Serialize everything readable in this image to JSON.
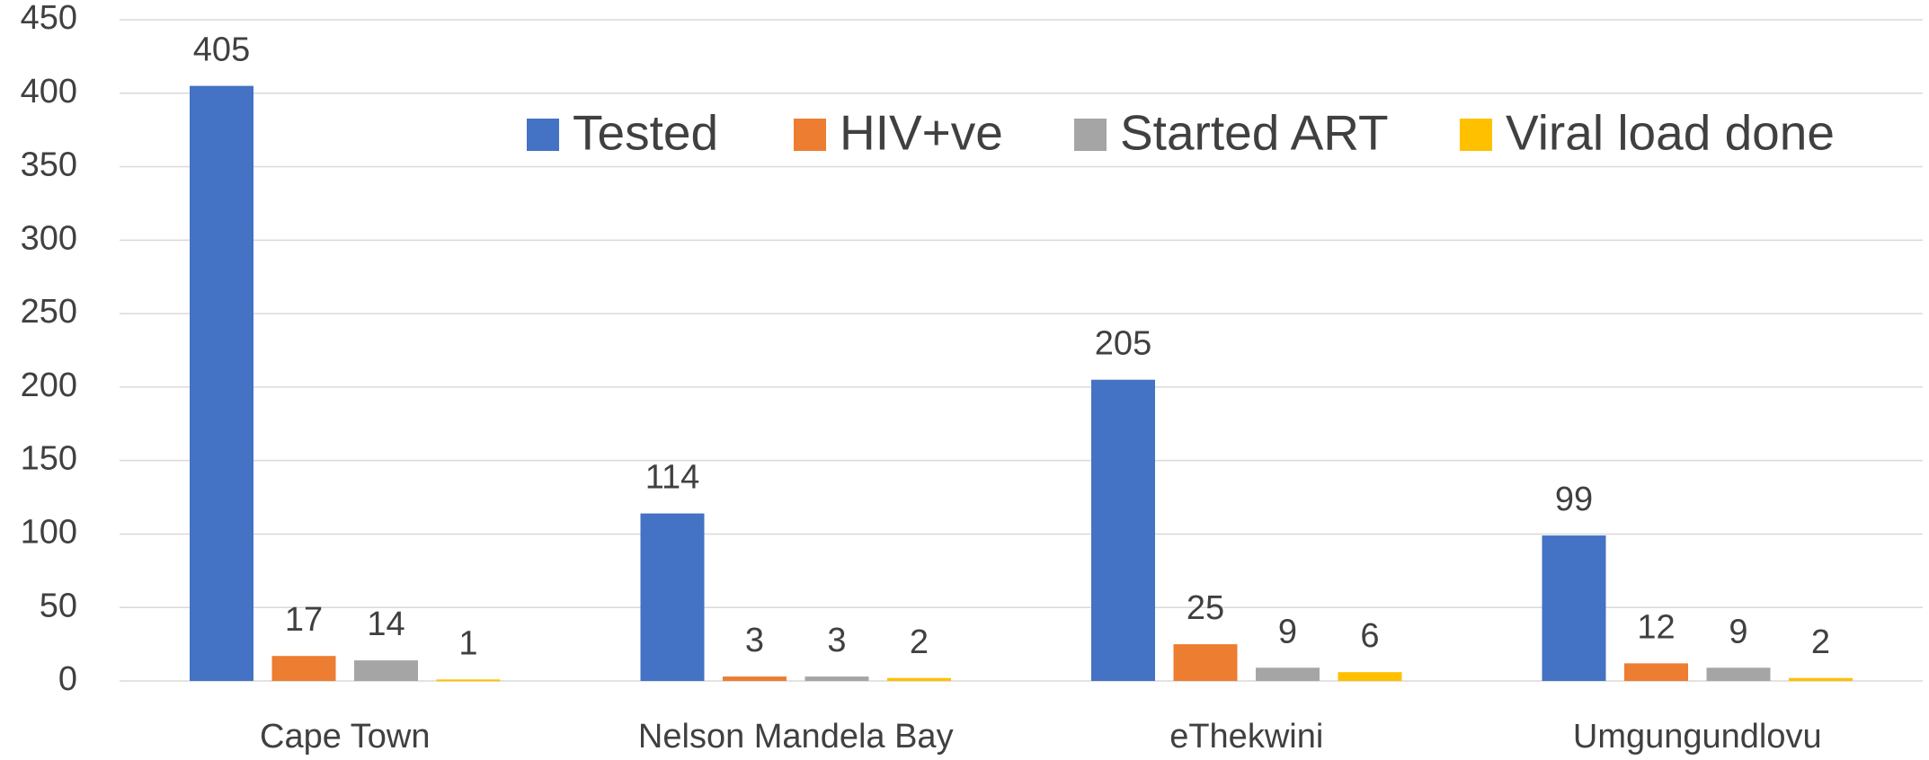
{
  "chart_data": {
    "type": "bar",
    "categories": [
      "Cape Town",
      "Nelson Mandela Bay",
      "eThekwini",
      "Umgungundlovu"
    ],
    "series": [
      {
        "name": "Tested",
        "color": "#4472c4",
        "values": [
          405,
          114,
          205,
          99
        ]
      },
      {
        "name": "HIV+ve",
        "color": "#ed7d31",
        "values": [
          17,
          3,
          25,
          12
        ]
      },
      {
        "name": "Started ART",
        "color": "#a5a5a5",
        "values": [
          14,
          3,
          9,
          9
        ]
      },
      {
        "name": "Viral load done",
        "color": "#ffc000",
        "values": [
          1,
          2,
          6,
          2
        ]
      }
    ],
    "ylim": [
      0,
      450
    ],
    "yticks": [
      0,
      50,
      100,
      150,
      200,
      250,
      300,
      350,
      400,
      450
    ],
    "grid": true,
    "legend": "top"
  }
}
